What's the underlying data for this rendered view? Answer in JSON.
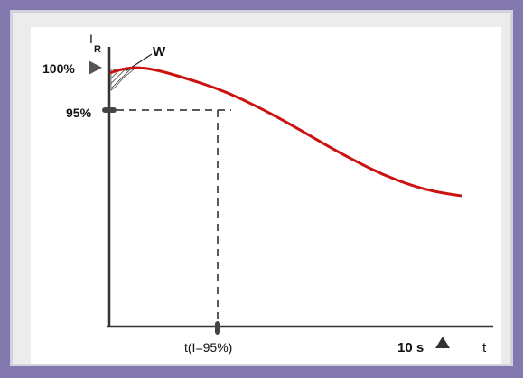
{
  "chart_data": {
    "type": "line",
    "y_axis_label": "I",
    "y_axis_subscript": "R",
    "x_axis_label": "t",
    "y_markers": [
      {
        "label": "100%",
        "value": 100
      },
      {
        "label": "95%",
        "value": 95
      }
    ],
    "x_markers": [
      {
        "label": "t(I=95%)"
      },
      {
        "label": "10 s"
      }
    ],
    "annotation": "W",
    "grid": false,
    "series": [
      {
        "color": "#cc1111",
        "note": "current decay curve after peak",
        "points": [
          [
            0.0,
            98.8
          ],
          [
            0.03,
            99.6
          ],
          [
            0.06,
            100.0
          ],
          [
            0.1,
            99.9
          ],
          [
            0.15,
            99.0
          ],
          [
            0.22,
            97.2
          ],
          [
            0.3,
            95.0
          ],
          [
            0.38,
            92.0
          ],
          [
            0.46,
            88.5
          ],
          [
            0.54,
            84.6
          ],
          [
            0.62,
            80.6
          ],
          [
            0.7,
            76.8
          ],
          [
            0.78,
            73.4
          ],
          [
            0.86,
            70.8
          ],
          [
            0.93,
            69.2
          ],
          [
            1.0,
            68.3
          ]
        ]
      }
    ],
    "colors": {
      "curve": "#cc1111",
      "background": "#8378ad",
      "frame": "#ececec"
    }
  }
}
